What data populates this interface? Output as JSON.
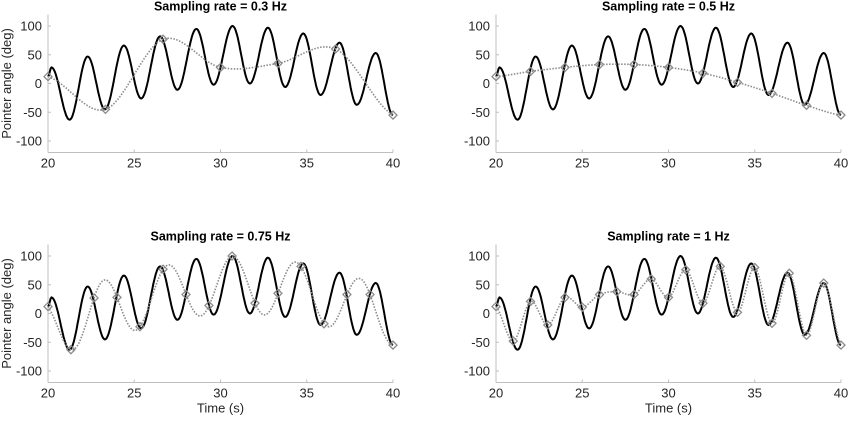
{
  "chart_data": [
    {
      "type": "line",
      "title": "Sampling rate = 0.3 Hz",
      "xlabel": "",
      "ylabel": "Pointer angle (deg)",
      "xlim": [
        20,
        40
      ],
      "ylim": [
        -120,
        120
      ],
      "xticks": [
        20,
        25,
        30,
        35,
        40
      ],
      "yticks": [
        -100,
        -50,
        0,
        50,
        100
      ],
      "grid": false,
      "samples": {
        "x": [
          20,
          23.33,
          26.67,
          30,
          33.33,
          36.67,
          40
        ],
        "y": [
          12,
          -45,
          77,
          28,
          35,
          60,
          -55
        ]
      }
    },
    {
      "type": "line",
      "title": "Sampling rate = 0.5 Hz",
      "xlabel": "",
      "ylabel": "",
      "xlim": [
        20,
        40
      ],
      "ylim": [
        -120,
        120
      ],
      "xticks": [
        20,
        25,
        30,
        35,
        40
      ],
      "yticks": [
        -100,
        -50,
        0,
        50,
        100
      ],
      "grid": false,
      "samples": {
        "x": [
          20,
          22,
          24,
          26,
          28,
          30,
          32,
          34,
          36,
          38,
          40
        ],
        "y": [
          12,
          21,
          28,
          33,
          33,
          28,
          18,
          2,
          -17,
          -38,
          -55
        ]
      }
    },
    {
      "type": "line",
      "title": "Sampling rate = 0.75 Hz",
      "xlabel": "Time (s)",
      "ylabel": "Pointer angle (deg)",
      "xlim": [
        20,
        40
      ],
      "ylim": [
        -120,
        120
      ],
      "xticks": [
        20,
        25,
        30,
        35,
        40
      ],
      "yticks": [
        -100,
        -50,
        0,
        50,
        100
      ],
      "grid": false,
      "samples": {
        "x": [
          20,
          21.33,
          22.67,
          24,
          25.33,
          26.67,
          28,
          29.33,
          30.67,
          32,
          33.33,
          34.67,
          36,
          37.33,
          38.67,
          40
        ],
        "y": [
          12,
          -63,
          27,
          28,
          -23,
          77,
          33,
          14,
          100,
          18,
          35,
          82,
          -18,
          33,
          33,
          -55
        ]
      }
    },
    {
      "type": "line",
      "title": "Sampling rate = 1 Hz",
      "xlabel": "Time (s)",
      "ylabel": "",
      "xlim": [
        20,
        40
      ],
      "ylim": [
        -120,
        120
      ],
      "xticks": [
        20,
        25,
        30,
        35,
        40
      ],
      "yticks": [
        -100,
        -50,
        0,
        50,
        100
      ],
      "grid": false,
      "samples": {
        "x": [
          20,
          21,
          22,
          23,
          24,
          25,
          26,
          27,
          28,
          29,
          30,
          31,
          32,
          33,
          34,
          35,
          36,
          37,
          38,
          39,
          40
        ],
        "y": [
          12,
          -48,
          21,
          -20,
          28,
          11,
          33,
          38,
          33,
          60,
          28,
          76,
          18,
          82,
          2,
          80,
          -17,
          70,
          -38,
          53,
          -55
        ]
      }
    }
  ],
  "true_signal": {
    "x": [
      20,
      20.2,
      21.25,
      22.3,
      23.3,
      24.4,
      25.4,
      26.5,
      27.5,
      28.6,
      29.6,
      30.7,
      31.7,
      32.75,
      33.75,
      34.8,
      35.8,
      36.9,
      37.9,
      39,
      40
    ],
    "y": [
      12,
      28,
      -63,
      47,
      -45,
      66,
      -26,
      82,
      -11,
      95,
      -2,
      100,
      0,
      97,
      -6,
      87,
      -20,
      71,
      -37,
      53,
      -55
    ]
  },
  "colors": {
    "true_signal": "#000000",
    "reconstruction": "#8c8c8c",
    "sample_marker": "#8c8c8c",
    "axis": "#bfbfbf"
  }
}
